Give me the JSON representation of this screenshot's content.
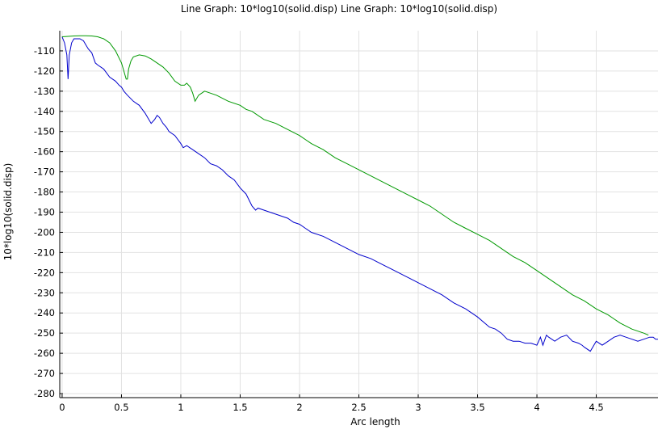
{
  "chart_data": {
    "type": "line",
    "title": "Line Graph: 10*log10(solid.disp)  Line Graph: 10*log10(solid.disp)",
    "xlabel": "Arc length",
    "ylabel": "10*log10(solid.disp)",
    "xlim": [
      -0.02,
      5.02
    ],
    "ylim": [
      -282,
      -100
    ],
    "xticks": [
      0,
      0.5,
      1,
      1.5,
      2,
      2.5,
      3,
      3.5,
      4,
      4.5
    ],
    "xtick_labels": [
      "0",
      "0.5",
      "1",
      "1.5",
      "2",
      "2.5",
      "3",
      "3.5",
      "4",
      "4.5"
    ],
    "yticks": [
      -110,
      -120,
      -130,
      -140,
      -150,
      -160,
      -170,
      -180,
      -190,
      -200,
      -210,
      -220,
      -230,
      -240,
      -250,
      -260,
      -270,
      -280
    ],
    "ytick_labels": [
      "-110",
      "-120",
      "-130",
      "-140",
      "-150",
      "-160",
      "-170",
      "-180",
      "-190",
      "-200",
      "-210",
      "-220",
      "-230",
      "-240",
      "-250",
      "-260",
      "-270",
      "-280"
    ],
    "grid": true,
    "legend": "none",
    "series": [
      {
        "color": "#0000cc",
        "x": [
          0,
          0.02,
          0.04,
          0.05,
          0.06,
          0.08,
          0.1,
          0.12,
          0.15,
          0.18,
          0.2,
          0.22,
          0.25,
          0.28,
          0.3,
          0.35,
          0.4,
          0.45,
          0.48,
          0.5,
          0.52,
          0.55,
          0.6,
          0.65,
          0.7,
          0.72,
          0.75,
          0.78,
          0.8,
          0.82,
          0.85,
          0.88,
          0.9,
          0.95,
          1.0,
          1.02,
          1.05,
          1.1,
          1.15,
          1.2,
          1.25,
          1.3,
          1.35,
          1.4,
          1.45,
          1.5,
          1.55,
          1.6,
          1.63,
          1.65,
          1.7,
          1.75,
          1.8,
          1.85,
          1.9,
          1.95,
          2.0,
          2.05,
          2.1,
          2.2,
          2.3,
          2.4,
          2.5,
          2.6,
          2.7,
          2.8,
          2.9,
          3.0,
          3.1,
          3.2,
          3.3,
          3.4,
          3.5,
          3.6,
          3.65,
          3.7,
          3.75,
          3.8,
          3.85,
          3.9,
          3.95,
          4.0,
          4.03,
          4.05,
          4.08,
          4.1,
          4.15,
          4.2,
          4.25,
          4.3,
          4.35,
          4.38,
          4.4,
          4.45,
          4.48,
          4.5,
          4.55,
          4.6,
          4.65,
          4.7,
          4.75,
          4.8,
          4.85,
          4.9,
          4.95,
          4.98,
          5.0,
          5.02
        ],
        "y": [
          -103,
          -106,
          -112,
          -124,
          -112,
          -106,
          -104,
          -104,
          -104,
          -105,
          -107,
          -109,
          -111,
          -116,
          -117,
          -119,
          -123,
          -125,
          -127,
          -128,
          -130,
          -132,
          -135,
          -137,
          -141,
          -143,
          -146,
          -144,
          -142,
          -143,
          -146,
          -148,
          -150,
          -152,
          -156,
          -158,
          -157,
          -159,
          -161,
          -163,
          -166,
          -167,
          -169,
          -172,
          -174,
          -178,
          -181,
          -187,
          -189,
          -188,
          -189,
          -190,
          -191,
          -192,
          -193,
          -195,
          -196,
          -198,
          -200,
          -202,
          -205,
          -208,
          -211,
          -213,
          -216,
          -219,
          -222,
          -225,
          -228,
          -231,
          -235,
          -238,
          -242,
          -247,
          -248,
          -250,
          -253,
          -254,
          -254,
          -255,
          -255,
          -256,
          -252,
          -256,
          -251,
          -252,
          -254,
          -252,
          -251,
          -254,
          -255,
          -256,
          -257,
          -259,
          -256,
          -254,
          -256,
          -254,
          -252,
          -251,
          -252,
          -253,
          -254,
          -253,
          -252,
          -252,
          -253,
          -253
        ]
      },
      {
        "color": "#009900",
        "x": [
          0,
          0.05,
          0.1,
          0.15,
          0.2,
          0.25,
          0.3,
          0.35,
          0.4,
          0.45,
          0.5,
          0.52,
          0.54,
          0.55,
          0.56,
          0.58,
          0.6,
          0.65,
          0.7,
          0.75,
          0.8,
          0.85,
          0.9,
          0.95,
          1.0,
          1.03,
          1.05,
          1.08,
          1.1,
          1.12,
          1.15,
          1.2,
          1.3,
          1.4,
          1.5,
          1.55,
          1.6,
          1.7,
          1.8,
          1.9,
          2.0,
          2.1,
          2.2,
          2.3,
          2.4,
          2.5,
          2.6,
          2.7,
          2.8,
          2.9,
          3.0,
          3.1,
          3.2,
          3.3,
          3.4,
          3.5,
          3.6,
          3.7,
          3.8,
          3.9,
          4.0,
          4.1,
          4.2,
          4.3,
          4.4,
          4.5,
          4.6,
          4.7,
          4.8,
          4.85,
          4.9,
          4.94
        ],
        "y": [
          -103,
          -102.8,
          -102.6,
          -102.5,
          -102.5,
          -102.6,
          -103,
          -104,
          -106,
          -110,
          -116,
          -120,
          -124,
          -124,
          -119,
          -115,
          -113,
          -112,
          -112.5,
          -114,
          -116,
          -118,
          -121,
          -125,
          -127,
          -127,
          -126,
          -128,
          -131,
          -135,
          -132,
          -130,
          -132,
          -135,
          -137,
          -139,
          -140,
          -144,
          -146,
          -149,
          -152,
          -156,
          -159,
          -163,
          -166,
          -169,
          -172,
          -175,
          -178,
          -181,
          -184,
          -187,
          -191,
          -195,
          -198,
          -201,
          -204,
          -208,
          -212,
          -215,
          -219,
          -223,
          -227,
          -231,
          -234,
          -238,
          -241,
          -245,
          -248,
          -249,
          -250,
          -251
        ]
      }
    ]
  }
}
